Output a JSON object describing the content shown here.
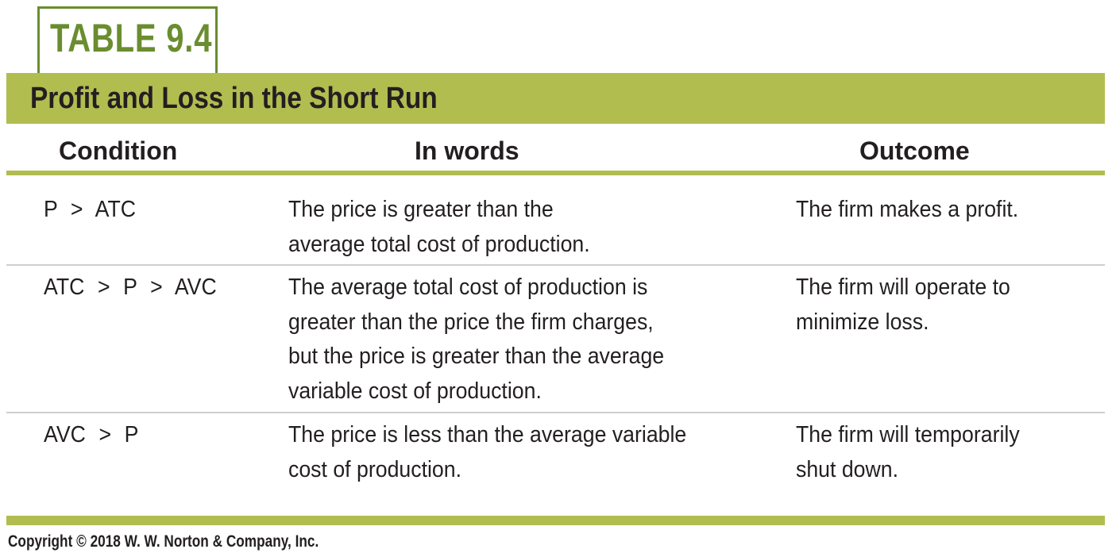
{
  "table_label": "TABLE 9.4",
  "title": "Profit and Loss in the Short Run",
  "headers": {
    "condition": "Condition",
    "words": "In words",
    "outcome": "Outcome"
  },
  "rows": [
    {
      "condition": "P > ATC",
      "words": [
        "The price is greater than the",
        "average total cost of production."
      ],
      "outcome": [
        "The firm makes a profit."
      ]
    },
    {
      "condition": "ATC > P > AVC",
      "words": [
        "The average total cost of production is",
        "greater than the price the firm charges,",
        "but the price is greater than the average",
        "variable cost of production."
      ],
      "outcome": [
        "The firm will operate to",
        "minimize loss."
      ]
    },
    {
      "condition": "AVC > P",
      "words": [
        "The price is less than the average variable",
        "cost of production."
      ],
      "outcome": [
        "The firm will temporarily",
        "shut down."
      ]
    }
  ],
  "copyright": "Copyright © 2018 W. W. Norton & Company, Inc.",
  "colors": {
    "accent_green": "#b1bd4f",
    "label_green": "#6a8d2f",
    "divider_gray": "#cfcfcf"
  }
}
